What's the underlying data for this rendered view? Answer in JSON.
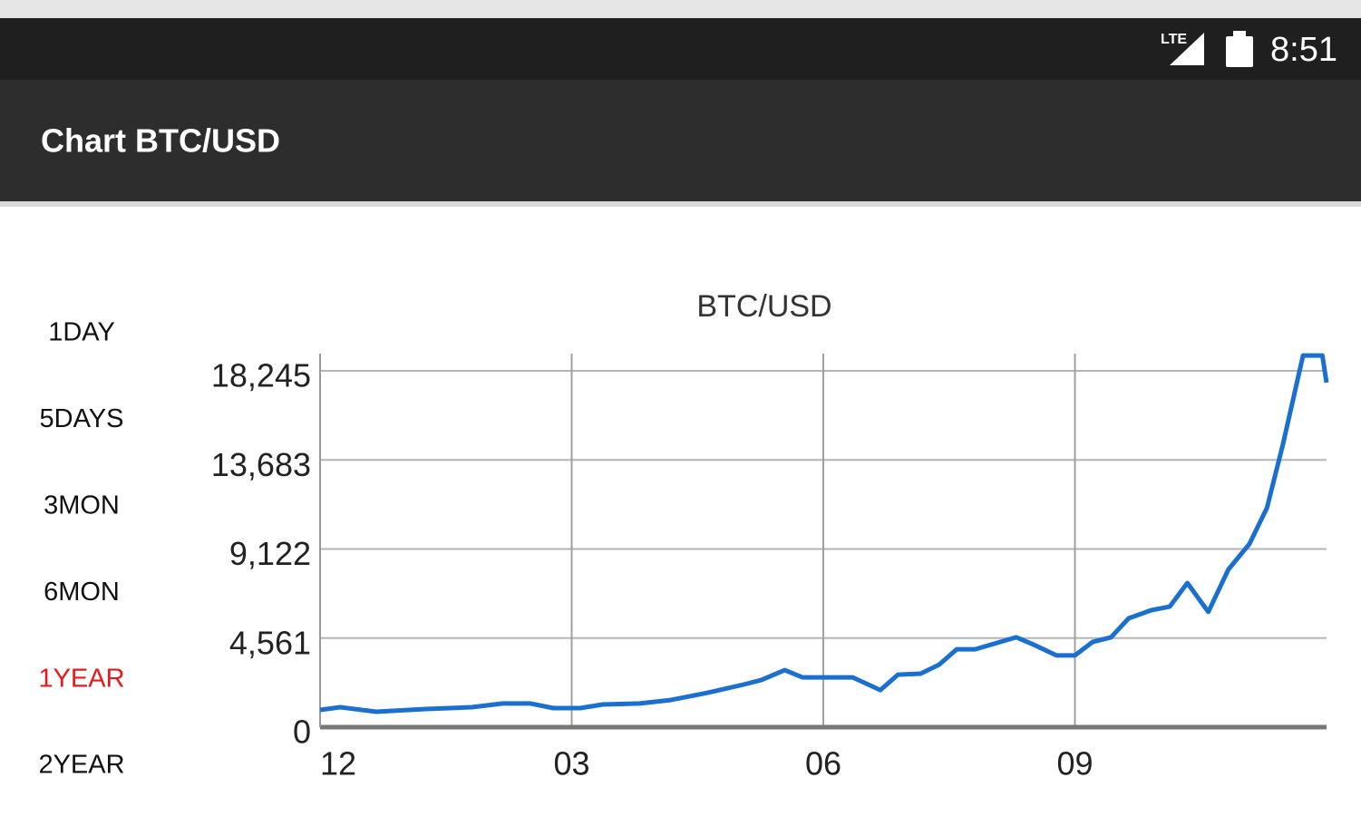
{
  "status_bar": {
    "network": "LTE",
    "time": "8:51"
  },
  "app_bar": {
    "title": "Chart BTC/USD"
  },
  "range_buttons": [
    {
      "label": "1DAY",
      "selected": false
    },
    {
      "label": "5DAYS",
      "selected": false
    },
    {
      "label": "3MON",
      "selected": false
    },
    {
      "label": "6MON",
      "selected": false
    },
    {
      "label": "1YEAR",
      "selected": true
    },
    {
      "label": "2YEAR",
      "selected": false
    }
  ],
  "chart_data": {
    "type": "line",
    "title": "BTC/USD",
    "color": "#1a6fcf",
    "grid": true,
    "x": [
      0,
      0.24,
      0.67,
      1.26,
      1.81,
      2.18,
      2.51,
      2.78,
      3.1,
      3.37,
      3.81,
      4.18,
      4.62,
      5.05,
      5.26,
      5.54,
      5.75,
      6.35,
      6.68,
      6.89,
      7.16,
      7.38,
      7.59,
      7.81,
      8.3,
      8.51,
      8.78,
      9.0,
      9.21,
      9.43,
      9.64,
      9.91,
      10.13,
      10.34,
      10.59,
      10.83,
      11.08,
      11.29,
      11.48,
      11.72,
      11.95,
      12
    ],
    "values": [
      880,
      1020,
      790,
      930,
      1020,
      1210,
      1210,
      975,
      975,
      1160,
      1210,
      1390,
      1760,
      2180,
      2410,
      2920,
      2550,
      2550,
      1900,
      2690,
      2740,
      3200,
      3990,
      3990,
      4600,
      4220,
      3670,
      3670,
      4360,
      4600,
      5570,
      5990,
      6170,
      7380,
      5900,
      8080,
      9380,
      11230,
      14480,
      19030,
      19030,
      17640
    ],
    "xlim": [
      0,
      12
    ],
    "xticks": [
      {
        "value": 0,
        "label": "12"
      },
      {
        "value": 3,
        "label": "03"
      },
      {
        "value": 6,
        "label": "06"
      },
      {
        "value": 9,
        "label": "09"
      }
    ],
    "ylim": [
      0,
      19127
    ],
    "yticks": [
      0,
      {
        "value": 4561,
        "label": "4,561"
      },
      {
        "value": 9122,
        "label": "9,122"
      },
      {
        "value": 13683,
        "label": "13,683"
      },
      {
        "value": 18245,
        "label": "18,245"
      }
    ]
  }
}
